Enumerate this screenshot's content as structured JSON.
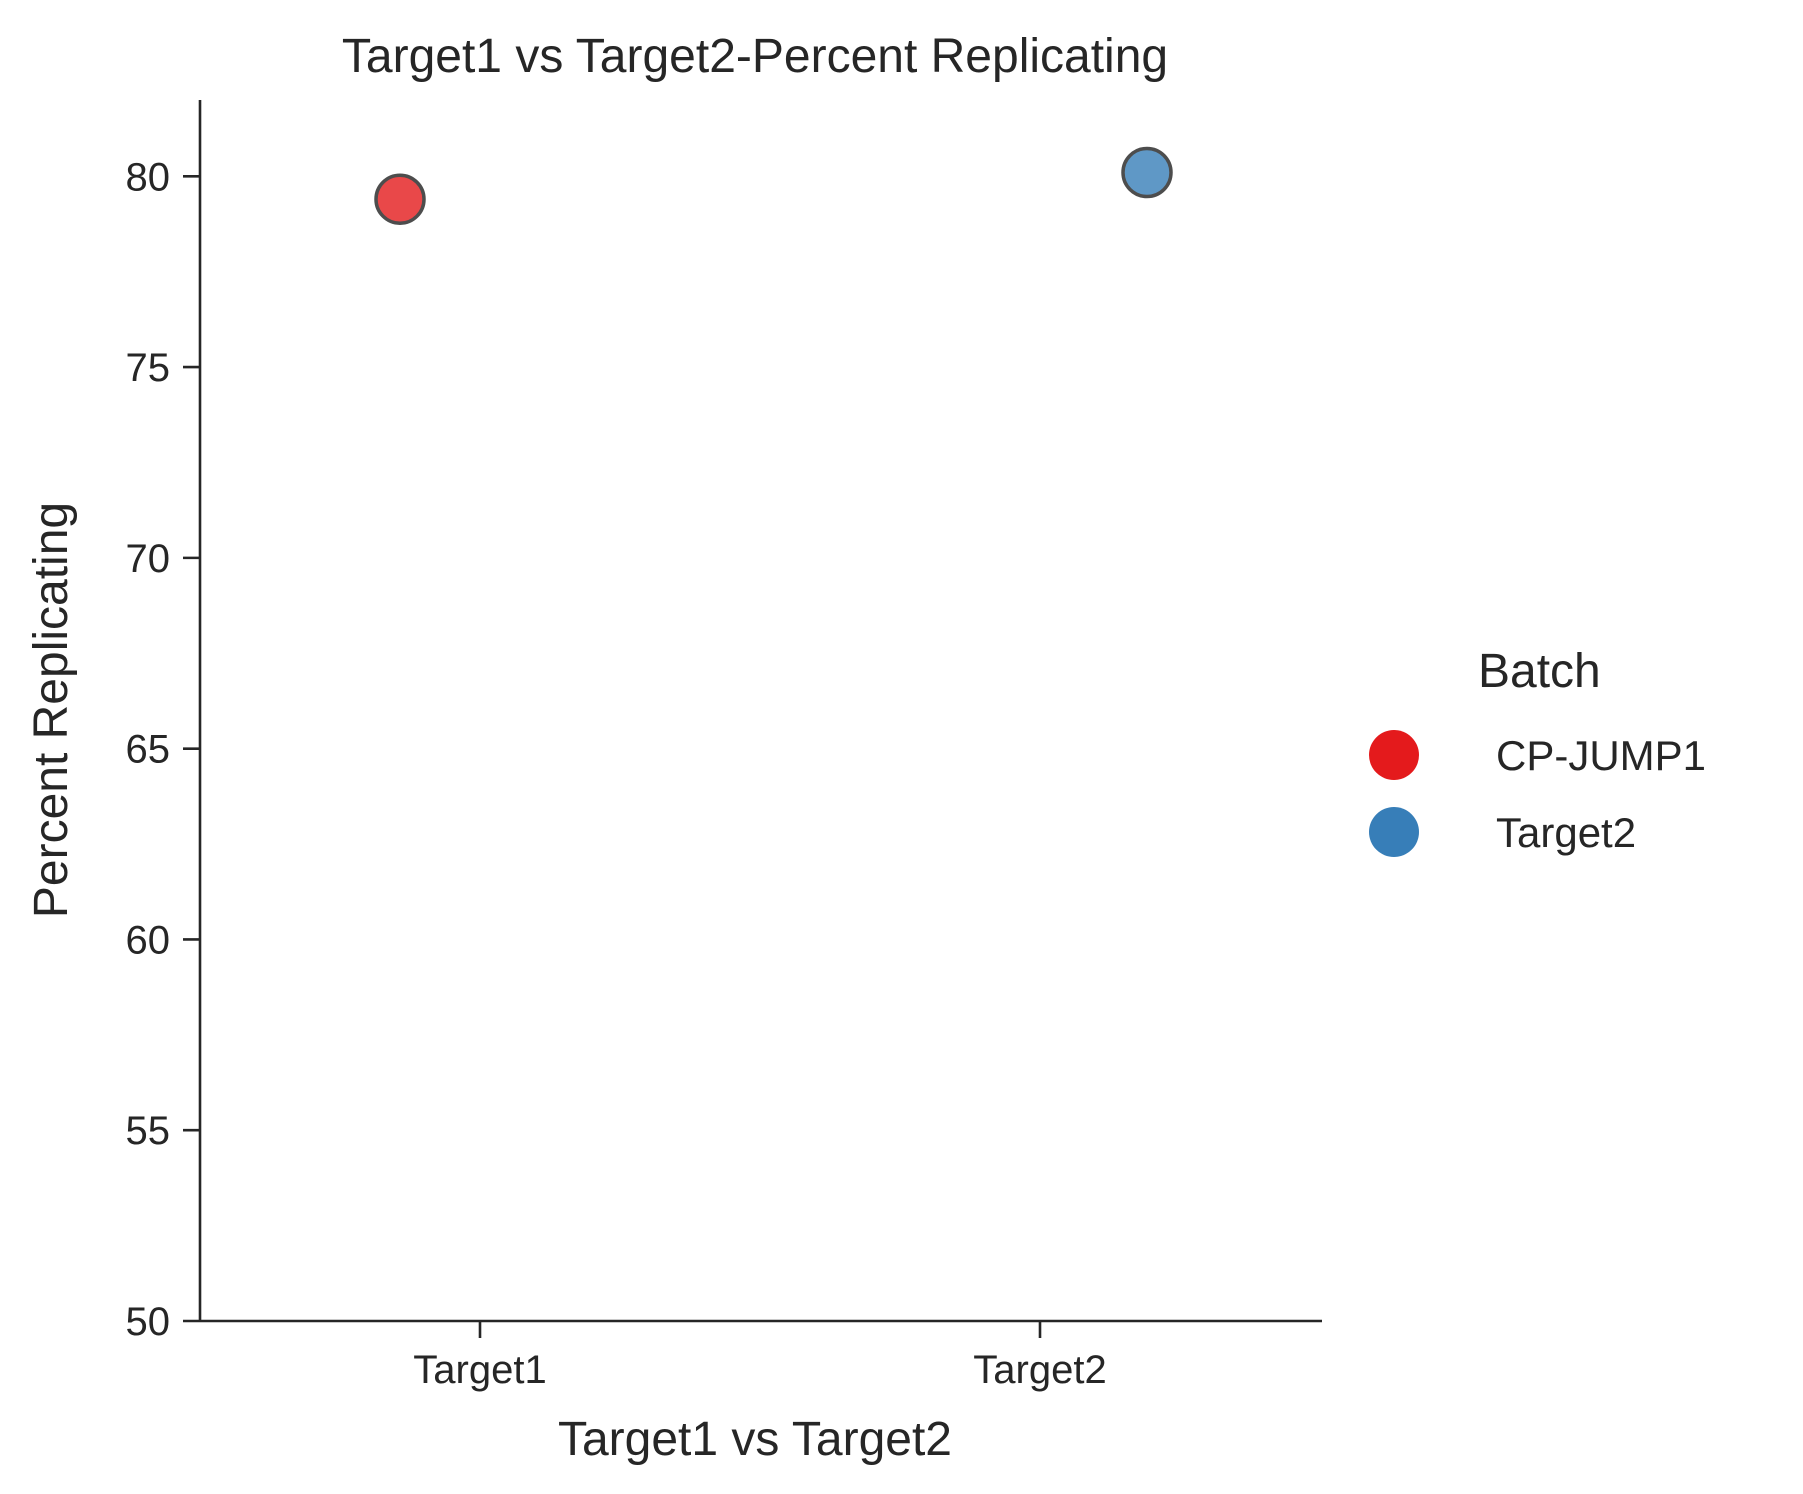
{
  "chart_data": {
    "type": "scatter",
    "title": "Target1 vs Target2-Percent Replicating",
    "xlabel": "Target1 vs Target2",
    "ylabel": "Percent Replicating",
    "categories": [
      "Target1",
      "Target2"
    ],
    "ylim": [
      50,
      82
    ],
    "yticks": [
      50,
      55,
      60,
      65,
      70,
      75,
      80
    ],
    "grid": false,
    "legend": {
      "title": "Batch",
      "placement": "right"
    },
    "series": [
      {
        "name": "CP-JUMP1",
        "category": "Target1",
        "value": 79.4,
        "color": "#e41a1c"
      },
      {
        "name": "Target2",
        "category": "Target2",
        "value": 80.1,
        "color": "#377eb8"
      }
    ]
  }
}
